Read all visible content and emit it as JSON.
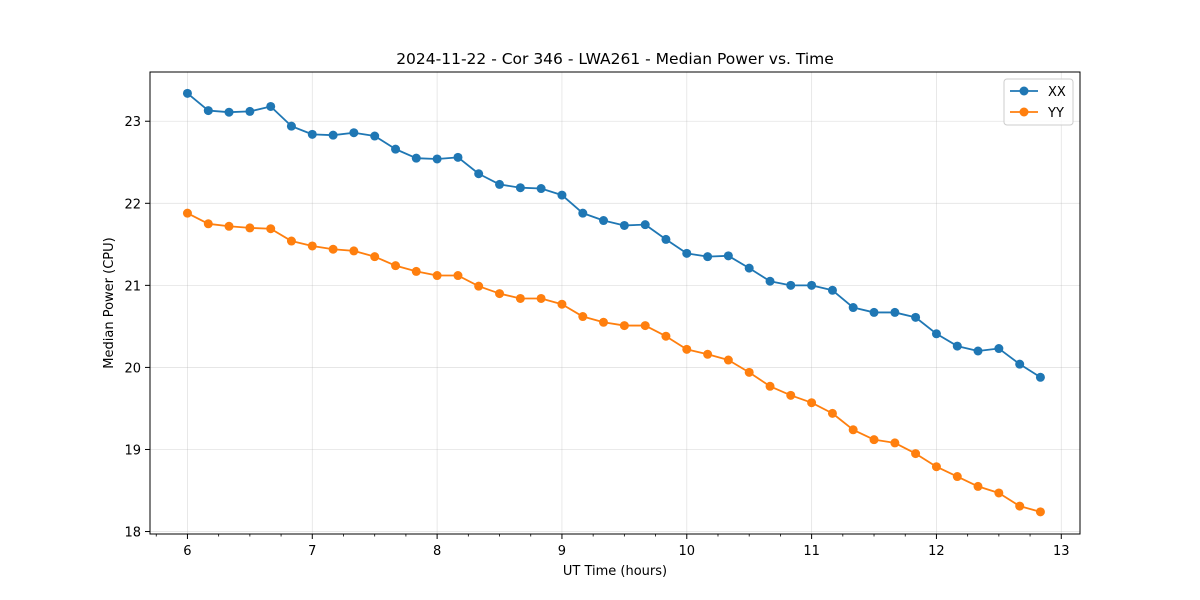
{
  "chart_data": {
    "type": "line",
    "title": "2024-11-22 - Cor 346 - LWA261 - Median Power vs. Time",
    "xlabel": "UT Time (hours)",
    "ylabel": "Median Power (CPU)",
    "xlim": [
      5.7,
      13.15
    ],
    "ylim": [
      17.97,
      23.6
    ],
    "xticks": [
      6,
      7,
      8,
      9,
      10,
      11,
      12,
      13
    ],
    "yticks": [
      18,
      19,
      20,
      21,
      22,
      23
    ],
    "minor_xtick_step": 0.25,
    "grid": true,
    "legend_position": "top-right",
    "x": [
      6.0,
      6.167,
      6.333,
      6.5,
      6.667,
      6.833,
      7.0,
      7.167,
      7.333,
      7.5,
      7.667,
      7.833,
      8.0,
      8.167,
      8.333,
      8.5,
      8.667,
      8.833,
      9.0,
      9.167,
      9.333,
      9.5,
      9.667,
      9.833,
      10.0,
      10.167,
      10.333,
      10.5,
      10.667,
      10.833,
      11.0,
      11.167,
      11.333,
      11.5,
      11.667,
      11.833,
      12.0,
      12.167,
      12.333,
      12.5,
      12.667,
      12.833
    ],
    "series": [
      {
        "name": "XX",
        "color": "#1f77b4",
        "values": [
          23.34,
          23.13,
          23.11,
          23.12,
          23.18,
          22.94,
          22.84,
          22.83,
          22.86,
          22.82,
          22.66,
          22.55,
          22.54,
          22.56,
          22.36,
          22.23,
          22.19,
          22.18,
          22.1,
          21.88,
          21.79,
          21.73,
          21.74,
          21.56,
          21.39,
          21.35,
          21.36,
          21.21,
          21.05,
          21.0,
          21.0,
          20.94,
          20.73,
          20.67,
          20.67,
          20.61,
          20.41,
          20.26,
          20.2,
          20.23,
          20.04,
          19.88
        ]
      },
      {
        "name": "YY",
        "color": "#ff7f0e",
        "values": [
          21.88,
          21.75,
          21.72,
          21.7,
          21.69,
          21.54,
          21.48,
          21.44,
          21.42,
          21.35,
          21.24,
          21.17,
          21.12,
          21.12,
          20.99,
          20.9,
          20.84,
          20.84,
          20.77,
          20.62,
          20.55,
          20.51,
          20.51,
          20.38,
          20.22,
          20.16,
          20.09,
          19.94,
          19.77,
          19.66,
          19.57,
          19.44,
          19.24,
          19.12,
          19.08,
          18.95,
          18.79,
          18.67,
          18.55,
          18.47,
          18.31,
          18.24
        ]
      }
    ]
  }
}
